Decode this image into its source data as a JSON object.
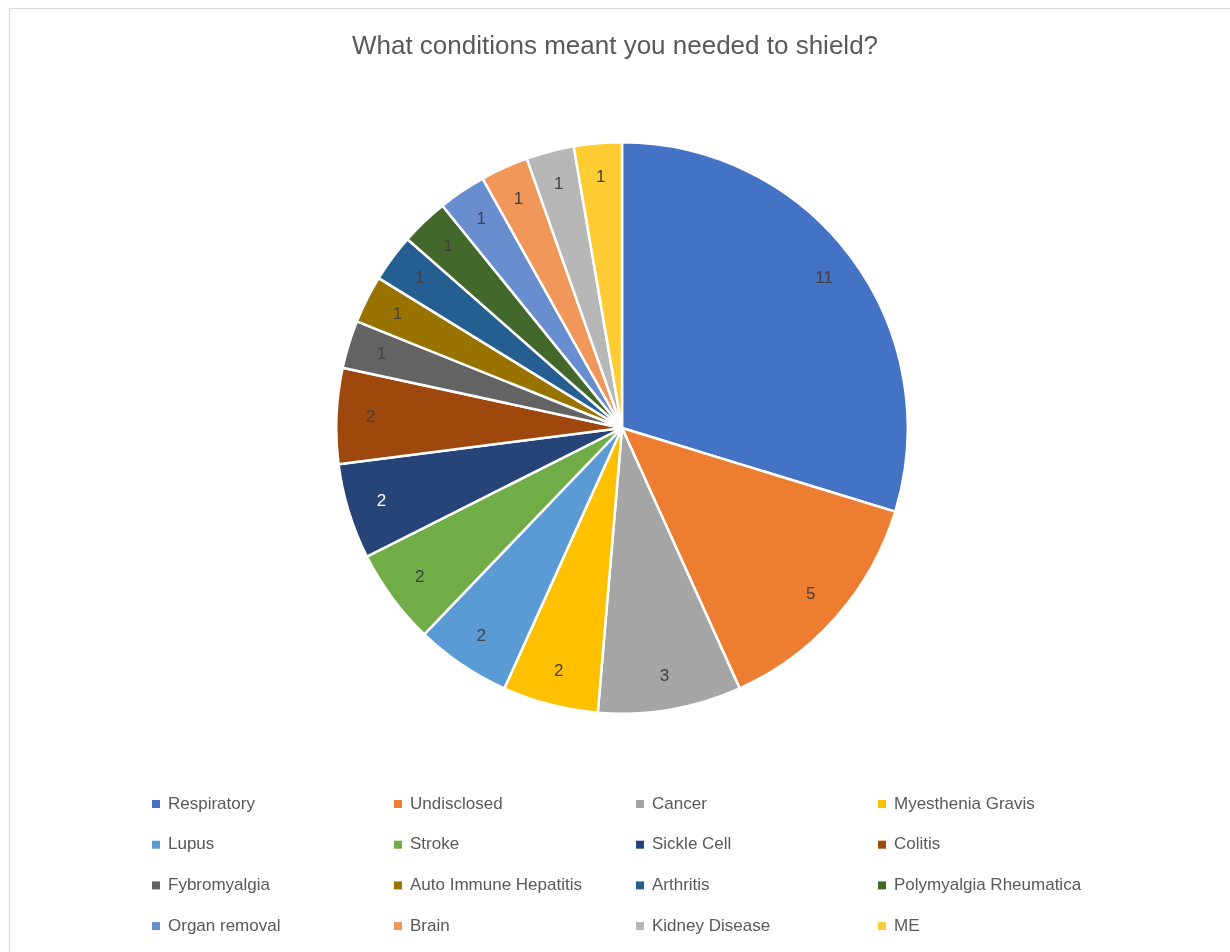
{
  "chart_data": {
    "type": "pie",
    "title": "What conditions meant you needed to shield?",
    "categories": [
      "Respiratory",
      "Undisclosed",
      "Cancer",
      "Myesthenia Gravis",
      "Lupus",
      "Stroke",
      "Sickle Cell",
      "Colitis",
      "Fybromyalgia",
      "Auto Immune Hepatitis",
      "Arthritis",
      "Polymyalgia Rheumatica",
      "Organ removal",
      "Brain",
      "Kidney Disease",
      "ME"
    ],
    "values": [
      11,
      5,
      3,
      2,
      2,
      2,
      2,
      2,
      1,
      1,
      1,
      1,
      1,
      1,
      1,
      1
    ],
    "colors": [
      "#4472c4",
      "#ed7d31",
      "#a5a5a5",
      "#ffc000",
      "#5b9bd5",
      "#70ad47",
      "#264478",
      "#9e480e",
      "#636363",
      "#997300",
      "#255e91",
      "#43682b",
      "#698ed0",
      "#f1975a",
      "#b7b7b7",
      "#ffcd33"
    ],
    "data_labels": true,
    "legend": "bottom"
  }
}
